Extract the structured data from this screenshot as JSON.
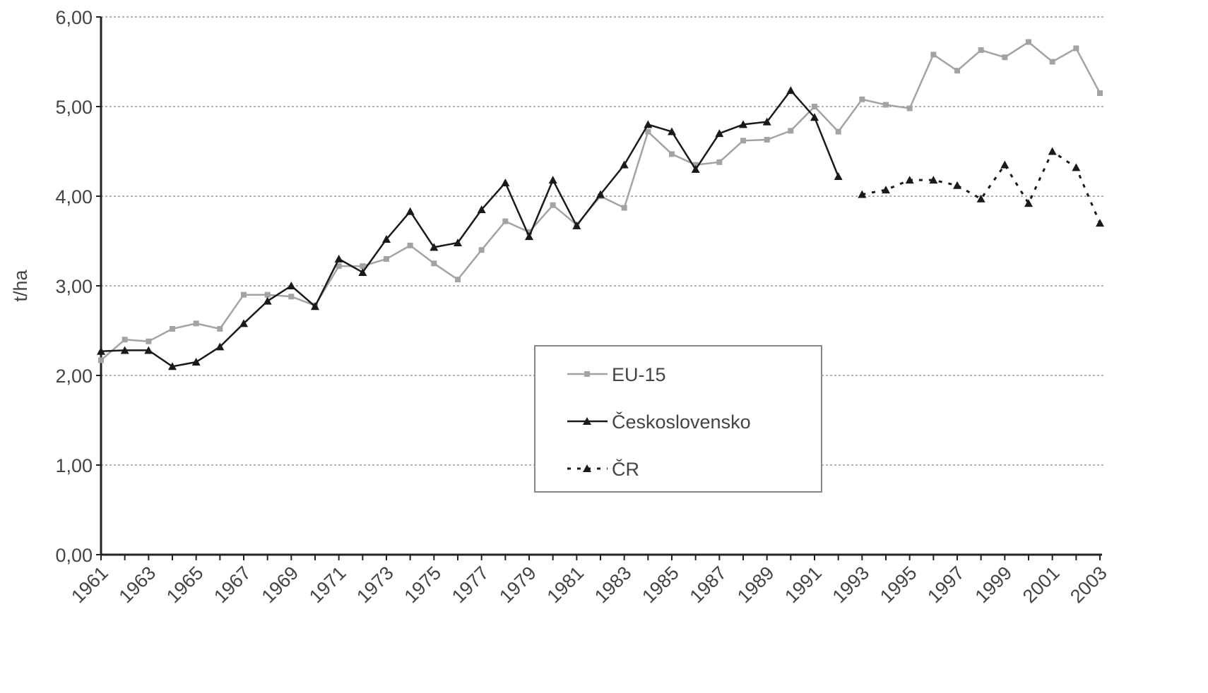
{
  "chart_data": {
    "type": "line",
    "y_label": "t/ha",
    "categories": [
      "1961",
      null,
      "1963",
      null,
      "1965",
      null,
      "1967",
      null,
      "1969",
      null,
      "1971",
      null,
      "1973",
      null,
      "1975",
      null,
      "1977",
      null,
      "1979",
      null,
      "1981",
      null,
      "1983",
      null,
      "1985",
      null,
      "1987",
      null,
      "1989",
      null,
      "1991",
      null,
      "1993",
      null,
      "1995",
      null,
      "1997",
      null,
      "1999",
      null,
      "2001",
      null,
      "2003"
    ],
    "series": [
      {
        "name": "EU-15",
        "color": "#a3a3a3",
        "marker": "square",
        "dashed": false,
        "values": [
          2.17,
          2.4,
          2.38,
          2.52,
          2.58,
          2.52,
          2.9,
          2.9,
          2.88,
          2.78,
          3.22,
          3.22,
          3.3,
          3.45,
          3.25,
          3.07,
          3.4,
          3.72,
          3.6,
          3.9,
          3.68,
          4.0,
          3.87,
          4.72,
          4.47,
          4.35,
          4.38,
          4.62,
          4.63,
          4.73,
          5.0,
          4.72,
          5.08,
          5.02,
          4.98,
          5.58,
          5.4,
          5.63,
          5.55,
          5.72,
          5.5,
          5.65,
          5.15
        ]
      },
      {
        "name": "Československo",
        "color": "#1a1a1a",
        "marker": "triangle",
        "dashed": false,
        "values": [
          2.27,
          2.28,
          2.28,
          2.1,
          2.15,
          2.32,
          2.58,
          2.83,
          3.0,
          2.77,
          3.3,
          3.15,
          3.52,
          3.83,
          3.43,
          3.48,
          3.85,
          4.15,
          3.55,
          4.18,
          3.67,
          4.02,
          4.35,
          4.8,
          4.72,
          4.3,
          4.7,
          4.8,
          4.83,
          5.18,
          4.88,
          4.22,
          null,
          null,
          null,
          null,
          null,
          null,
          null,
          null,
          null,
          null,
          null
        ]
      },
      {
        "name": "ČR",
        "color": "#1a1a1a",
        "marker": "triangle",
        "dashed": true,
        "values": [
          null,
          null,
          null,
          null,
          null,
          null,
          null,
          null,
          null,
          null,
          null,
          null,
          null,
          null,
          null,
          null,
          null,
          null,
          null,
          null,
          null,
          null,
          null,
          null,
          null,
          null,
          null,
          null,
          null,
          null,
          null,
          null,
          4.02,
          4.07,
          4.18,
          4.18,
          4.12,
          3.97,
          4.35,
          3.92,
          4.5,
          4.32,
          3.7
        ]
      }
    ],
    "ylim": [
      0,
      6
    ],
    "yticks": [
      {
        "value": 0,
        "label": "0,00"
      },
      {
        "value": 1,
        "label": "1,00"
      },
      {
        "value": 2,
        "label": "2,00"
      },
      {
        "value": 3,
        "label": "3,00"
      },
      {
        "value": 4,
        "label": "4,00"
      },
      {
        "value": 5,
        "label": "5,00"
      },
      {
        "value": 6,
        "label": "6,00"
      }
    ],
    "grid": true
  }
}
